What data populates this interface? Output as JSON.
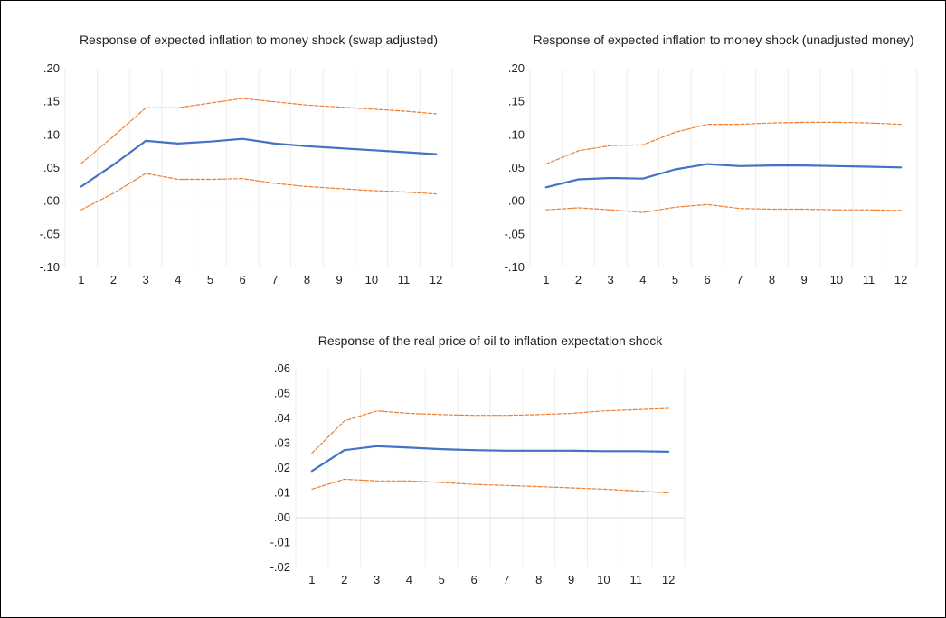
{
  "chart_data": [
    {
      "type": "line",
      "title": "Response of expected inflation to money shock (swap adjusted)",
      "xlabel": "",
      "ylabel": "",
      "x": [
        1,
        2,
        3,
        4,
        5,
        6,
        7,
        8,
        9,
        10,
        11,
        12
      ],
      "ylim": [
        -0.1,
        0.2
      ],
      "y_ticks": [
        ".20",
        ".15",
        ".10",
        ".05",
        ".00",
        "-.05",
        "-.10"
      ],
      "grid": true,
      "series": [
        {
          "role": "upper",
          "color": "#ED7D31",
          "dashed": true,
          "values": [
            0.057,
            0.098,
            0.141,
            0.141,
            0.148,
            0.155,
            0.15,
            0.145,
            0.142,
            0.139,
            0.136,
            0.132
          ]
        },
        {
          "role": "response",
          "color": "#4472C4",
          "dashed": false,
          "values": [
            0.022,
            0.055,
            0.091,
            0.087,
            0.09,
            0.094,
            0.087,
            0.083,
            0.08,
            0.077,
            0.074,
            0.071
          ]
        },
        {
          "role": "lower",
          "color": "#ED7D31",
          "dashed": true,
          "values": [
            -0.013,
            0.012,
            0.042,
            0.033,
            0.033,
            0.034,
            0.027,
            0.022,
            0.019,
            0.016,
            0.014,
            0.011
          ]
        }
      ]
    },
    {
      "type": "line",
      "title": "Response of expected inflation to money shock (unadjusted money)",
      "xlabel": "",
      "ylabel": "",
      "x": [
        1,
        2,
        3,
        4,
        5,
        6,
        7,
        8,
        9,
        10,
        11,
        12
      ],
      "ylim": [
        -0.1,
        0.2
      ],
      "y_ticks": [
        ".20",
        ".15",
        ".10",
        ".05",
        ".00",
        "-.05",
        "-.10"
      ],
      "grid": true,
      "series": [
        {
          "role": "upper",
          "color": "#ED7D31",
          "dashed": true,
          "values": [
            0.056,
            0.076,
            0.084,
            0.085,
            0.104,
            0.116,
            0.116,
            0.118,
            0.119,
            0.119,
            0.118,
            0.116
          ]
        },
        {
          "role": "response",
          "color": "#4472C4",
          "dashed": false,
          "values": [
            0.021,
            0.033,
            0.035,
            0.034,
            0.048,
            0.056,
            0.053,
            0.054,
            0.054,
            0.053,
            0.052,
            0.051
          ]
        },
        {
          "role": "lower",
          "color": "#ED7D31",
          "dashed": true,
          "values": [
            -0.013,
            -0.01,
            -0.013,
            -0.017,
            -0.009,
            -0.005,
            -0.011,
            -0.012,
            -0.012,
            -0.013,
            -0.013,
            -0.014
          ]
        }
      ]
    },
    {
      "type": "line",
      "title": "Response of the real price of oil to inflation expectation shock",
      "xlabel": "",
      "ylabel": "",
      "x": [
        1,
        2,
        3,
        4,
        5,
        6,
        7,
        8,
        9,
        10,
        11,
        12
      ],
      "ylim": [
        -0.02,
        0.06
      ],
      "y_ticks": [
        ".06",
        ".05",
        ".04",
        ".03",
        ".02",
        ".01",
        ".00",
        "-.01",
        "-.02"
      ],
      "grid": true,
      "series": [
        {
          "role": "upper",
          "color": "#ED7D31",
          "dashed": true,
          "values": [
            0.026,
            0.039,
            0.043,
            0.042,
            0.0415,
            0.0412,
            0.0412,
            0.0415,
            0.042,
            0.043,
            0.0435,
            0.044
          ]
        },
        {
          "role": "response",
          "color": "#4472C4",
          "dashed": false,
          "values": [
            0.0188,
            0.0272,
            0.0288,
            0.0282,
            0.0276,
            0.0272,
            0.027,
            0.027,
            0.027,
            0.0268,
            0.0268,
            0.0266
          ]
        },
        {
          "role": "lower",
          "color": "#ED7D31",
          "dashed": true,
          "values": [
            0.0115,
            0.0155,
            0.0148,
            0.0148,
            0.0142,
            0.0134,
            0.013,
            0.0125,
            0.012,
            0.0115,
            0.0108,
            0.01
          ]
        }
      ]
    }
  ]
}
